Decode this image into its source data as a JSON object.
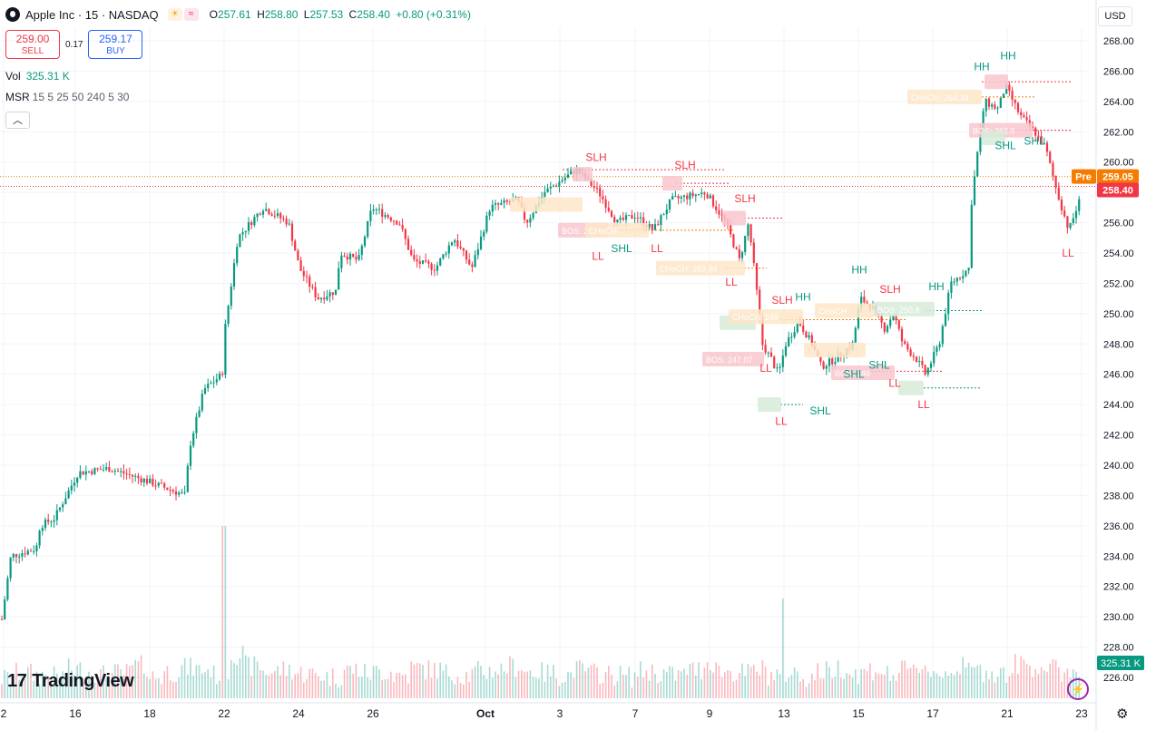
{
  "header": {
    "symbol": "Apple Inc · 15 · NASDAQ",
    "ohlc": [
      {
        "k": "O",
        "v": "257.61"
      },
      {
        "k": "H",
        "v": "258.80"
      },
      {
        "k": "L",
        "v": "257.53"
      },
      {
        "k": "C",
        "v": "258.40"
      }
    ],
    "change": "+0.80 (+0.31%)"
  },
  "trade": {
    "sell_price": "259.00",
    "sell_label": "SELL",
    "spread": "0.17",
    "buy_price": "259.17",
    "buy_label": "BUY"
  },
  "volume_legend": {
    "label": "Vol",
    "value": "325.31 K"
  },
  "indicator": {
    "name": "MSR",
    "params": "15 5 25 50 240 5 30"
  },
  "currency": "USD",
  "brand": "TradingView",
  "icons": {
    "collapse": "chevron-up-icon",
    "settings": "gear-icon",
    "bolt": "lightning-icon",
    "sun": "sun-icon",
    "wave": "wave-icon"
  },
  "colors": {
    "up": "#089981",
    "down": "#f23645",
    "pre": "#f57c00",
    "grid": "#f0f3fa"
  },
  "chart_data": {
    "type": "candlestick",
    "ylim": [
      225.0,
      269.0
    ],
    "y_ticks": [
      "268.00",
      "266.00",
      "264.00",
      "262.00",
      "260.00",
      "258.00",
      "256.00",
      "254.00",
      "252.00",
      "250.00",
      "248.00",
      "246.00",
      "244.00",
      "242.00",
      "240.00",
      "238.00",
      "236.00",
      "234.00",
      "232.00",
      "230.00",
      "228.00",
      "226.00"
    ],
    "x_ticks": [
      "2",
      "16",
      "18",
      "22",
      "24",
      "26",
      "Oct",
      "3",
      "7",
      "9",
      "13",
      "15",
      "17",
      "21",
      "23"
    ],
    "path": [
      [
        0,
        229
      ],
      [
        12,
        234
      ],
      [
        40,
        234.5
      ],
      [
        44,
        236
      ],
      [
        60,
        236.5
      ],
      [
        86,
        239.5
      ],
      [
        120,
        239.8
      ],
      [
        160,
        239
      ],
      [
        205,
        238
      ],
      [
        208,
        241
      ],
      [
        225,
        245
      ],
      [
        245,
        246
      ],
      [
        248,
        249
      ],
      [
        262,
        255
      ],
      [
        290,
        257
      ],
      [
        318,
        256
      ],
      [
        330,
        253
      ],
      [
        350,
        251
      ],
      [
        370,
        251.5
      ],
      [
        375,
        254
      ],
      [
        395,
        253.5
      ],
      [
        410,
        257
      ],
      [
        440,
        256
      ],
      [
        455,
        253.5
      ],
      [
        480,
        253
      ],
      [
        500,
        255
      ],
      [
        520,
        253
      ],
      [
        535,
        256
      ],
      [
        540,
        257
      ],
      [
        570,
        257.5
      ],
      [
        580,
        256
      ],
      [
        600,
        258
      ],
      [
        635,
        259.5
      ],
      [
        660,
        258
      ],
      [
        680,
        256
      ],
      [
        700,
        256.5
      ],
      [
        720,
        255.5
      ],
      [
        740,
        257.5
      ],
      [
        778,
        258
      ],
      [
        800,
        256
      ],
      [
        815,
        253.5
      ],
      [
        825,
        256
      ],
      [
        833,
        252
      ],
      [
        840,
        248
      ],
      [
        850,
        247
      ],
      [
        858,
        246
      ],
      [
        866,
        248
      ],
      [
        880,
        249.5
      ],
      [
        895,
        248
      ],
      [
        905,
        246.5
      ],
      [
        920,
        247
      ],
      [
        940,
        248
      ],
      [
        948,
        251
      ],
      [
        960,
        250.5
      ],
      [
        975,
        249
      ],
      [
        985,
        250
      ],
      [
        995,
        248
      ],
      [
        1010,
        247
      ],
      [
        1020,
        246
      ],
      [
        1035,
        248
      ],
      [
        1048,
        252
      ],
      [
        1068,
        253
      ],
      [
        1070,
        257
      ],
      [
        1078,
        261
      ],
      [
        1085,
        264
      ],
      [
        1100,
        263.5
      ],
      [
        1108,
        265
      ],
      [
        1125,
        263
      ],
      [
        1140,
        262
      ],
      [
        1152,
        261
      ],
      [
        1165,
        258
      ],
      [
        1178,
        255.5
      ],
      [
        1190,
        257.5
      ],
      [
        1192,
        258.4
      ]
    ],
    "volume_relative": [
      0.25,
      0.4,
      0.35,
      0.3,
      0.5,
      0.45,
      0.35,
      0.4,
      0.6,
      0.3,
      0.45,
      0.55,
      0.5,
      0.35,
      0.95,
      0.6,
      0.45,
      0.5,
      0.4,
      0.35,
      0.3,
      0.5,
      0.4,
      0.45,
      0.35,
      0.55,
      0.5,
      0.4,
      0.35,
      0.45,
      0.5,
      0.6,
      0.45,
      0.4,
      0.35,
      0.5,
      0.4,
      0.35,
      0.3,
      0.45,
      0.4,
      0.35,
      0.5,
      0.7,
      0.45,
      0.4,
      0.5,
      0.35,
      0.4,
      0.3,
      0.45,
      0.55,
      0.4,
      0.5,
      0.35,
      0.45,
      0.6,
      0.4,
      0.55,
      0.5,
      0.45,
      0.4,
      0.65,
      0.6,
      0.5,
      0.45,
      0.55,
      0.4,
      0.35
    ],
    "price_lines": [
      {
        "value": 259.05,
        "label": "259.05",
        "badge": "Pre",
        "color": "#f57c00"
      },
      {
        "value": 258.4,
        "label": "258.40",
        "color": "#f23645"
      }
    ],
    "volume_badge": "325.31 K",
    "labels": [
      {
        "t": "SLH",
        "x": 657,
        "y": 260.3,
        "c": "#f23645"
      },
      {
        "t": "SLH",
        "x": 755,
        "y": 259.8,
        "c": "#f23645"
      },
      {
        "t": "SLH",
        "x": 821,
        "y": 257.6,
        "c": "#f23645"
      },
      {
        "t": "LL",
        "x": 659,
        "y": 253.8,
        "c": "#f23645"
      },
      {
        "t": "SHL",
        "x": 685,
        "y": 254.3,
        "c": "#089981"
      },
      {
        "t": "LL",
        "x": 724,
        "y": 254.3,
        "c": "#f23645"
      },
      {
        "t": "LL",
        "x": 806,
        "y": 252.1,
        "c": "#f23645"
      },
      {
        "t": "HH",
        "x": 947,
        "y": 252.9,
        "c": "#089981"
      },
      {
        "t": "SLH",
        "x": 862,
        "y": 250.9,
        "c": "#f23645"
      },
      {
        "t": "HH",
        "x": 885,
        "y": 251.1,
        "c": "#089981"
      },
      {
        "t": "SLH",
        "x": 981,
        "y": 251.6,
        "c": "#f23645"
      },
      {
        "t": "HH",
        "x": 1032,
        "y": 251.8,
        "c": "#089981"
      },
      {
        "t": "LL",
        "x": 844,
        "y": 246.4,
        "c": "#f23645"
      },
      {
        "t": "SHL",
        "x": 941,
        "y": 246.0,
        "c": "#089981"
      },
      {
        "t": "SHL",
        "x": 969,
        "y": 246.6,
        "c": "#089981"
      },
      {
        "t": "LL",
        "x": 986,
        "y": 245.4,
        "c": "#f23645"
      },
      {
        "t": "LL",
        "x": 1018,
        "y": 244.0,
        "c": "#f23645"
      },
      {
        "t": "LL",
        "x": 861,
        "y": 242.9,
        "c": "#f23645"
      },
      {
        "t": "SHL",
        "x": 904,
        "y": 243.6,
        "c": "#089981"
      },
      {
        "t": "HH",
        "x": 1082,
        "y": 266.3,
        "c": "#089981"
      },
      {
        "t": "HH",
        "x": 1111,
        "y": 267.0,
        "c": "#089981"
      },
      {
        "t": "SHL",
        "x": 1108,
        "y": 261.1,
        "c": "#089981"
      },
      {
        "t": "SHL",
        "x": 1140,
        "y": 261.4,
        "c": "#089981"
      },
      {
        "t": "LL",
        "x": 1177,
        "y": 254.0,
        "c": "#f23645"
      }
    ],
    "tags": [
      {
        "t": "",
        "x": 562,
        "y": 257.2,
        "w": 80,
        "c": "#fde6c8"
      },
      {
        "t": "",
        "x": 631,
        "y": 259.2,
        "w": 22,
        "c": "#f8c6cc"
      },
      {
        "t": "",
        "x": 730,
        "y": 258.6,
        "w": 22,
        "c": "#f8c6cc"
      },
      {
        "t": "BOS: 25",
        "x": 615,
        "y": 255.5,
        "w": 55,
        "c": "#f8c6cc"
      },
      {
        "t": "CHoCH",
        "x": 645,
        "y": 255.5,
        "w": 70,
        "c": "#fde6c8"
      },
      {
        "t": "",
        "x": 796,
        "y": 256.3,
        "w": 26,
        "c": "#f8c6cc"
      },
      {
        "t": "CHoCH: 253.94",
        "x": 723,
        "y": 253.0,
        "w": 98,
        "c": "#fde6c8"
      },
      {
        "t": "",
        "x": 793,
        "y": 249.4,
        "w": 40,
        "c": "#d7ebd9"
      },
      {
        "t": "CHoCH: 249",
        "x": 803,
        "y": 249.8,
        "w": 82,
        "c": "#fde6c8"
      },
      {
        "t": "CHoCH",
        "x": 898,
        "y": 250.2,
        "w": 65,
        "c": "#fde6c8"
      },
      {
        "t": "BOS: 250.8",
        "x": 963,
        "y": 250.3,
        "w": 67,
        "c": "#d7ebd9"
      },
      {
        "t": "",
        "x": 886,
        "y": 247.6,
        "w": 68,
        "c": "#fde6c8"
      },
      {
        "t": "BOS: 247.07",
        "x": 774,
        "y": 247.0,
        "w": 68,
        "c": "#f8c6cc"
      },
      {
        "t": "BOS: 246",
        "x": 916,
        "y": 246.1,
        "w": 70,
        "c": "#f8c6cc"
      },
      {
        "t": "",
        "x": 835,
        "y": 244.0,
        "w": 26,
        "c": "#d7ebd9"
      },
      {
        "t": "",
        "x": 990,
        "y": 245.1,
        "w": 28,
        "c": "#d7ebd9"
      },
      {
        "t": "CHoCH: 264.39",
        "x": 1000,
        "y": 264.3,
        "w": 82,
        "c": "#fde6c8"
      },
      {
        "t": "",
        "x": 1085,
        "y": 265.3,
        "w": 26,
        "c": "#f8c6cc"
      },
      {
        "t": "BOS: 262.9",
        "x": 1068,
        "y": 262.1,
        "w": 70,
        "c": "#f8c6cc"
      },
      {
        "t": "",
        "x": 1082,
        "y": 261.6,
        "w": 26,
        "c": "#d7ebd9"
      }
    ],
    "levels": [
      {
        "x1": 620,
        "x2": 800,
        "y": 259.5,
        "c": "#f23645"
      },
      {
        "x1": 745,
        "x2": 805,
        "y": 258.6,
        "c": "#f23645"
      },
      {
        "x1": 820,
        "x2": 862,
        "y": 256.3,
        "c": "#f23645"
      },
      {
        "x1": 670,
        "x2": 808,
        "y": 255.5,
        "c": "#f57c00"
      },
      {
        "x1": 800,
        "x2": 845,
        "y": 253.0,
        "c": "#f57c00"
      },
      {
        "x1": 860,
        "x2": 1000,
        "y": 249.6,
        "c": "#f57c00"
      },
      {
        "x1": 1020,
        "x2": 1082,
        "y": 250.2,
        "c": "#089981"
      },
      {
        "x1": 960,
        "x2": 1040,
        "y": 246.2,
        "c": "#f23645"
      },
      {
        "x1": 860,
        "x2": 885,
        "y": 244.0,
        "c": "#089981"
      },
      {
        "x1": 1018,
        "x2": 1082,
        "y": 245.1,
        "c": "#089981"
      },
      {
        "x1": 1082,
        "x2": 1180,
        "y": 265.3,
        "c": "#f23645"
      },
      {
        "x1": 1110,
        "x2": 1180,
        "y": 262.1,
        "c": "#f23645"
      },
      {
        "x1": 1082,
        "x2": 1140,
        "y": 264.3,
        "c": "#f57c00"
      }
    ]
  }
}
